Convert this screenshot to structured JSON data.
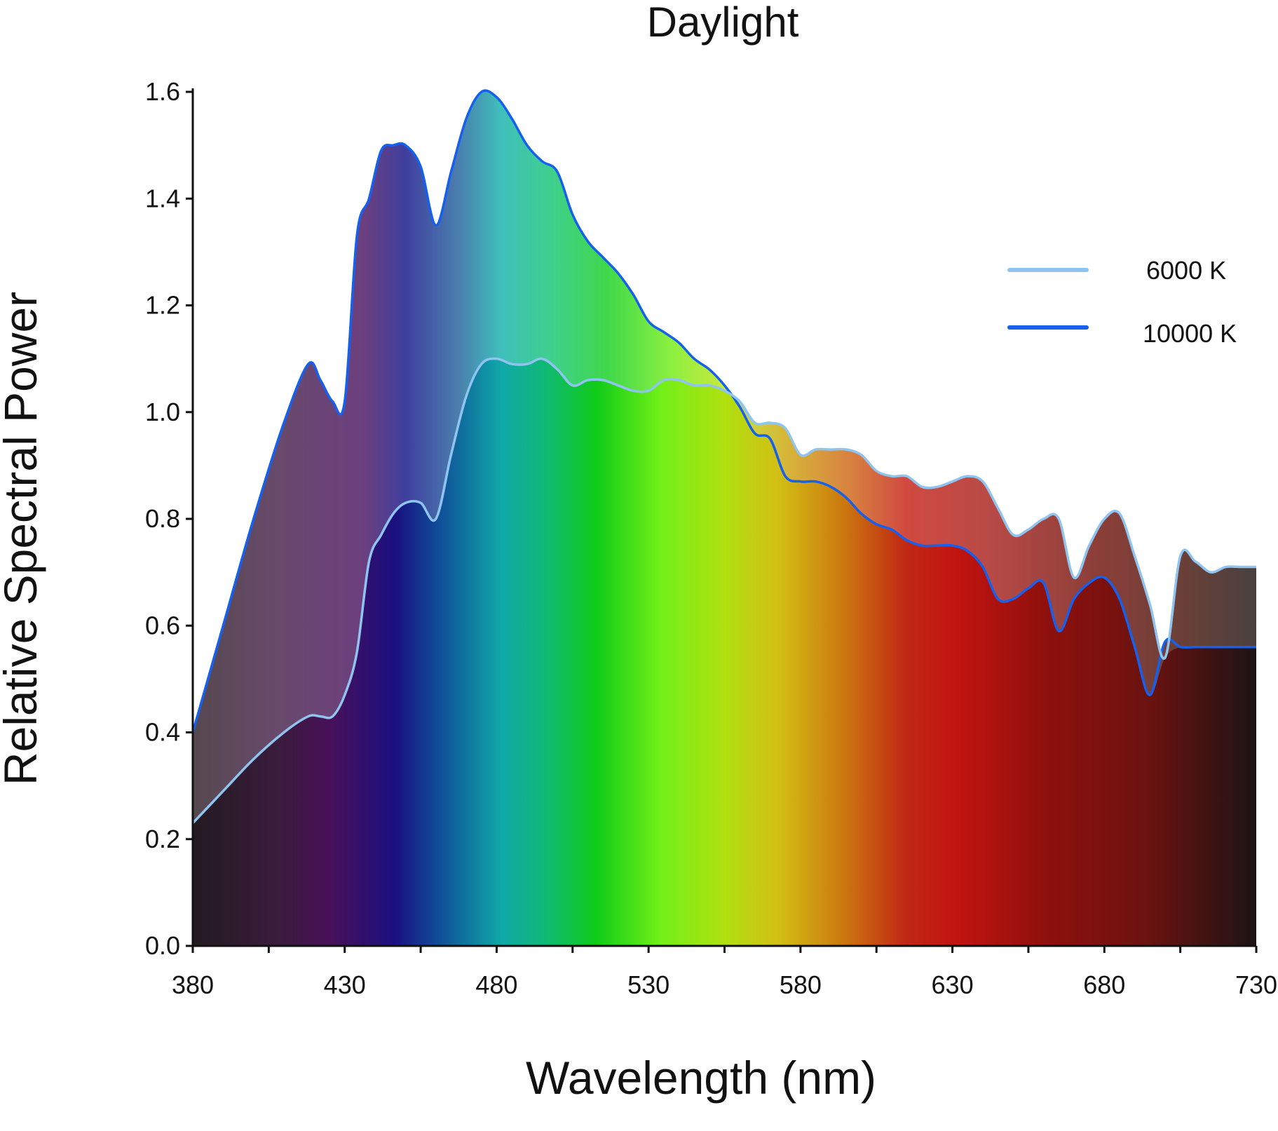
{
  "chart_data": {
    "type": "area",
    "title": "Daylight",
    "xlabel": "Wavelength (nm)",
    "ylabel": "Relative Spectral Power",
    "xlim": [
      380,
      730
    ],
    "ylim": [
      0,
      1.6
    ],
    "x_ticks": [
      "380",
      "430",
      "480",
      "530",
      "580",
      "630",
      "680",
      "730"
    ],
    "y_ticks": [
      "0.0",
      "0.2",
      "0.4",
      "0.6",
      "0.8",
      "1.0",
      "1.2",
      "1.4",
      "1.6"
    ],
    "grid": false,
    "legend_position": "top-right",
    "fill": "visible-spectrum gradient under curves",
    "series": [
      {
        "name": "6000 K",
        "color": "#90c4f0",
        "x": [
          380,
          390,
          400,
          410,
          418,
          422,
          426,
          430,
          434,
          438,
          442,
          446,
          450,
          455,
          460,
          465,
          470,
          475,
          480,
          485,
          490,
          495,
          500,
          505,
          510,
          515,
          520,
          525,
          530,
          535,
          540,
          545,
          550,
          555,
          560,
          565,
          570,
          575,
          580,
          585,
          590,
          595,
          600,
          605,
          610,
          615,
          620,
          625,
          630,
          635,
          640,
          645,
          650,
          655,
          660,
          665,
          670,
          675,
          680,
          685,
          690,
          695,
          700,
          705,
          710,
          715,
          720,
          725,
          730
        ],
        "values": [
          0.23,
          0.29,
          0.35,
          0.4,
          0.43,
          0.43,
          0.43,
          0.47,
          0.55,
          0.72,
          0.77,
          0.81,
          0.83,
          0.83,
          0.8,
          0.92,
          1.03,
          1.09,
          1.1,
          1.09,
          1.09,
          1.1,
          1.08,
          1.05,
          1.06,
          1.06,
          1.05,
          1.04,
          1.04,
          1.06,
          1.06,
          1.05,
          1.05,
          1.04,
          1.02,
          0.98,
          0.98,
          0.97,
          0.92,
          0.93,
          0.93,
          0.93,
          0.92,
          0.89,
          0.88,
          0.88,
          0.86,
          0.86,
          0.87,
          0.88,
          0.87,
          0.82,
          0.77,
          0.78,
          0.8,
          0.8,
          0.69,
          0.75,
          0.8,
          0.81,
          0.73,
          0.64,
          0.54,
          0.73,
          0.72,
          0.7,
          0.71,
          0.71,
          0.71
        ]
      },
      {
        "name": "10000 K",
        "color": "#1560ee",
        "x": [
          380,
          390,
          400,
          410,
          418,
          422,
          426,
          430,
          434,
          438,
          442,
          446,
          450,
          455,
          460,
          465,
          470,
          475,
          480,
          485,
          490,
          495,
          500,
          505,
          510,
          515,
          520,
          525,
          530,
          535,
          540,
          545,
          550,
          555,
          560,
          565,
          570,
          575,
          580,
          585,
          590,
          595,
          600,
          605,
          610,
          615,
          620,
          625,
          630,
          635,
          640,
          645,
          650,
          655,
          660,
          665,
          670,
          675,
          680,
          685,
          690,
          695,
          700,
          705,
          710,
          715,
          720,
          725,
          730
        ],
        "values": [
          0.4,
          0.6,
          0.8,
          0.98,
          1.09,
          1.06,
          1.02,
          1.02,
          1.33,
          1.4,
          1.49,
          1.5,
          1.5,
          1.46,
          1.35,
          1.45,
          1.55,
          1.6,
          1.59,
          1.55,
          1.5,
          1.47,
          1.45,
          1.37,
          1.32,
          1.29,
          1.26,
          1.22,
          1.17,
          1.15,
          1.13,
          1.1,
          1.08,
          1.05,
          1.01,
          0.96,
          0.95,
          0.88,
          0.87,
          0.87,
          0.86,
          0.84,
          0.81,
          0.79,
          0.78,
          0.76,
          0.75,
          0.75,
          0.75,
          0.74,
          0.71,
          0.65,
          0.65,
          0.67,
          0.68,
          0.59,
          0.65,
          0.68,
          0.69,
          0.65,
          0.56,
          0.47,
          0.57,
          0.56,
          0.56,
          0.56,
          0.56,
          0.56,
          0.56
        ]
      }
    ]
  }
}
